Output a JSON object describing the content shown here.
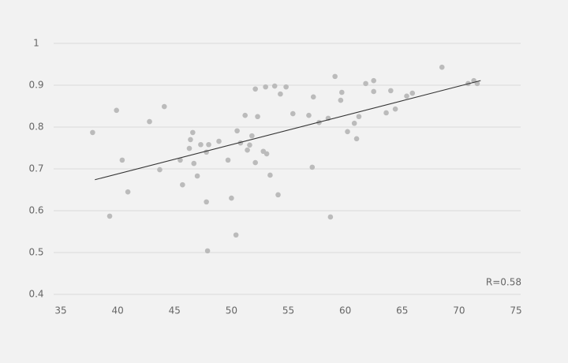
{
  "chart_data": {
    "type": "scatter",
    "x": [
      37.8,
      39.3,
      39.9,
      40.4,
      40.9,
      42.8,
      43.7,
      44.1,
      45.5,
      45.7,
      46.3,
      46.4,
      46.6,
      46.7,
      47.0,
      47.3,
      47.8,
      47.8,
      48.0,
      47.9,
      48.9,
      49.7,
      50.0,
      50.4,
      50.5,
      50.8,
      51.2,
      51.4,
      51.6,
      51.8,
      52.1,
      52.1,
      52.3,
      52.8,
      53.0,
      53.1,
      53.4,
      53.8,
      54.1,
      54.3,
      54.8,
      55.4,
      56.8,
      57.2,
      57.1,
      57.7,
      58.5,
      58.7,
      59.1,
      59.6,
      59.7,
      60.2,
      60.8,
      61.0,
      61.2,
      61.8,
      62.5,
      62.5,
      63.6,
      64.0,
      64.4,
      65.4,
      65.9,
      68.5,
      70.8,
      71.3,
      71.6
    ],
    "values": [
      0.787,
      0.587,
      0.84,
      0.721,
      0.645,
      0.813,
      0.698,
      0.849,
      0.721,
      0.662,
      0.749,
      0.77,
      0.787,
      0.713,
      0.683,
      0.758,
      0.74,
      0.621,
      0.758,
      0.504,
      0.766,
      0.721,
      0.63,
      0.542,
      0.791,
      0.762,
      0.828,
      0.745,
      0.757,
      0.779,
      0.715,
      0.891,
      0.825,
      0.742,
      0.896,
      0.736,
      0.685,
      0.898,
      0.638,
      0.879,
      0.896,
      0.832,
      0.828,
      0.872,
      0.704,
      0.811,
      0.821,
      0.585,
      0.921,
      0.864,
      0.883,
      0.789,
      0.809,
      0.772,
      0.825,
      0.904,
      0.885,
      0.911,
      0.834,
      0.887,
      0.843,
      0.874,
      0.881,
      0.943,
      0.904,
      0.911,
      0.904
    ],
    "color": "#bbbbbb",
    "trendline": {
      "x": [
        38.0,
        71.9
      ],
      "values": [
        0.674,
        0.911
      ],
      "color": "#333333"
    },
    "annotation": "R=0.58",
    "xlim": [
      35,
      75
    ],
    "xticks": [
      35,
      40,
      45,
      50,
      55,
      60,
      65,
      70,
      75
    ],
    "ylim": [
      0.4,
      1
    ],
    "yticks": [
      0.4,
      0.5,
      0.6,
      0.7,
      0.8,
      0.9,
      1
    ],
    "grid": true
  }
}
